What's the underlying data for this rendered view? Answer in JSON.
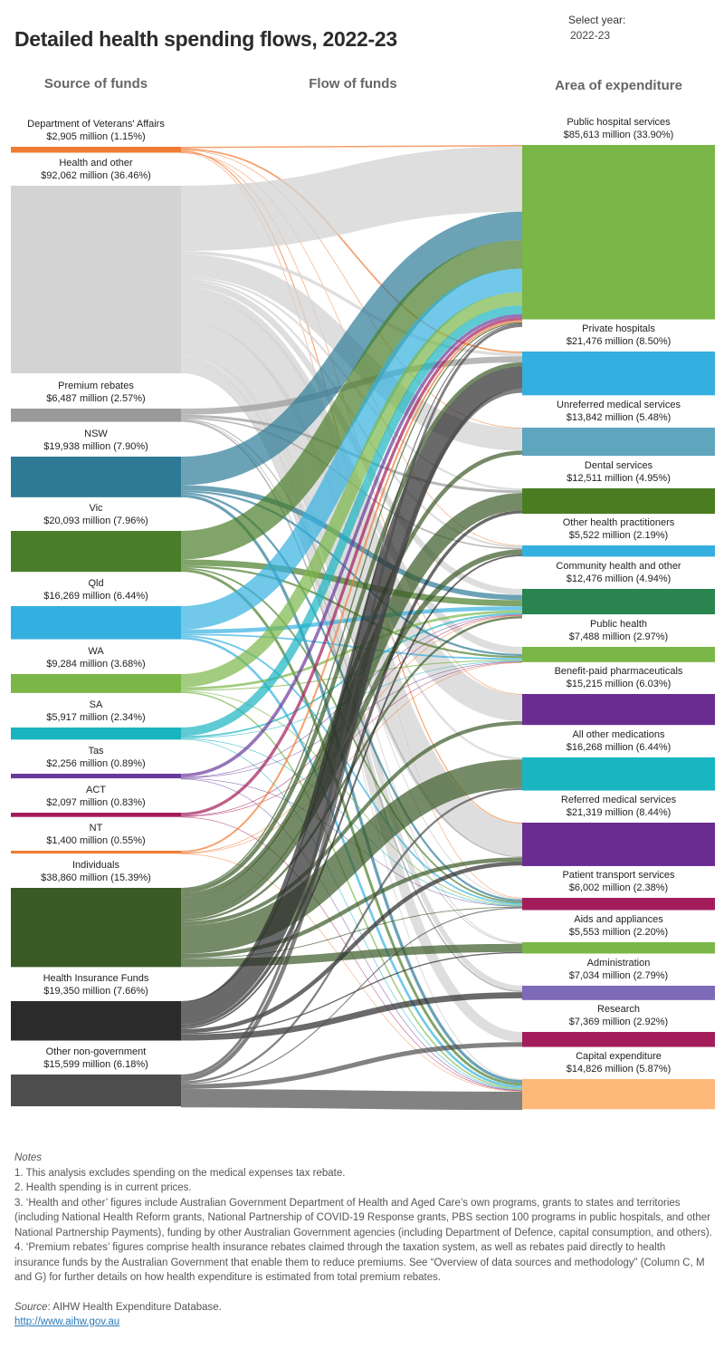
{
  "title": "Detailed health spending flows, 2022-23",
  "year_filter": {
    "label": "Select year:",
    "value": "2022-23"
  },
  "column_headers": {
    "source": "Source of funds",
    "flow": "Flow of funds",
    "area": "Area of expenditure"
  },
  "chart_data": {
    "type": "sankey",
    "sources": [
      {
        "name": "Department of Veterans' Affairs",
        "value": 2905,
        "label": "$2,905 million (1.15%)",
        "color": "#f07c34"
      },
      {
        "name": "Health and other",
        "value": 92062,
        "label": "$92,062 million (36.46%)",
        "color": "#d3d3d3"
      },
      {
        "name": "Premium rebates",
        "value": 6487,
        "label": "$6,487 million (2.57%)",
        "color": "#9a9a9a"
      },
      {
        "name": "NSW",
        "value": 19938,
        "label": "$19,938 million (7.90%)",
        "color": "#2e7a96"
      },
      {
        "name": "Vic",
        "value": 20093,
        "label": "$20,093 million (7.96%)",
        "color": "#4a7d2a"
      },
      {
        "name": "Qld",
        "value": 16269,
        "label": "$16,269 million (6.44%)",
        "color": "#34b0e0"
      },
      {
        "name": "WA",
        "value": 9284,
        "label": "$9,284 million (3.68%)",
        "color": "#7ab648"
      },
      {
        "name": "SA",
        "value": 5917,
        "label": "$5,917 million (2.34%)",
        "color": "#1ab3c0"
      },
      {
        "name": "Tas",
        "value": 2256,
        "label": "$2,256 million (0.89%)",
        "color": "#6a3a9a"
      },
      {
        "name": "ACT",
        "value": 2097,
        "label": "$2,097 million (0.83%)",
        "color": "#a31d5a"
      },
      {
        "name": "NT",
        "value": 1400,
        "label": "$1,400 million (0.55%)",
        "color": "#f07c34"
      },
      {
        "name": "Individuals",
        "value": 38860,
        "label": "$38,860 million (15.39%)",
        "color": "#3a5a26"
      },
      {
        "name": "Health Insurance Funds",
        "value": 19350,
        "label": "$19,350 million (7.66%)",
        "color": "#2b2b2b"
      },
      {
        "name": "Other non-government",
        "value": 15599,
        "label": "$15,599 million (6.18%)",
        "color": "#4d4d4d"
      }
    ],
    "targets": [
      {
        "name": "Public hospital services",
        "value": 85613,
        "label": "$85,613 million (33.90%)",
        "color": "#7ab648"
      },
      {
        "name": "Private hospitals",
        "value": 21476,
        "label": "$21,476 million (8.50%)",
        "color": "#34b0e0"
      },
      {
        "name": "Unreferred medical services",
        "value": 13842,
        "label": "$13,842 million (5.48%)",
        "color": "#5ea5bd"
      },
      {
        "name": "Dental services",
        "value": 12511,
        "label": "$12,511 million (4.95%)",
        "color": "#4a7d22"
      },
      {
        "name": "Other health practitioners",
        "value": 5522,
        "label": "$5,522 million (2.19%)",
        "color": "#34b0e0"
      },
      {
        "name": "Community health and other",
        "value": 12476,
        "label": "$12,476 million (4.94%)",
        "color": "#2a8450"
      },
      {
        "name": "Public health",
        "value": 7488,
        "label": "$7,488 million (2.97%)",
        "color": "#7ab648"
      },
      {
        "name": "Benefit-paid pharmaceuticals",
        "value": 15215,
        "label": "$15,215 million (6.03%)",
        "color": "#6a2c91"
      },
      {
        "name": "All other medications",
        "value": 16268,
        "label": "$16,268 million (6.44%)",
        "color": "#19b5c1"
      },
      {
        "name": "Referred medical services",
        "value": 21319,
        "label": "$21,319 million (8.44%)",
        "color": "#6a2c91"
      },
      {
        "name": "Patient transport services",
        "value": 6002,
        "label": "$6,002 million (2.38%)",
        "color": "#a31d5a"
      },
      {
        "name": "Aids and appliances",
        "value": 5553,
        "label": "$5,553 million (2.20%)",
        "color": "#7ab648"
      },
      {
        "name": "Administration",
        "value": 7034,
        "label": "$7,034 million (2.79%)",
        "color": "#7d6ab8"
      },
      {
        "name": "Research",
        "value": 7369,
        "label": "$7,369 million (2.92%)",
        "color": "#a31d5a"
      },
      {
        "name": "Capital expenditure",
        "value": 14826,
        "label": "$14,826 million (5.87%)",
        "color": "#fdb97a"
      }
    ],
    "flows": [
      [
        0,
        0,
        700
      ],
      [
        0,
        1,
        800
      ],
      [
        0,
        2,
        300
      ],
      [
        0,
        9,
        500
      ],
      [
        0,
        7,
        300
      ],
      [
        0,
        10,
        200
      ],
      [
        0,
        4,
        105
      ],
      [
        1,
        0,
        32062
      ],
      [
        1,
        1,
        1500
      ],
      [
        1,
        2,
        11000
      ],
      [
        1,
        3,
        1000
      ],
      [
        1,
        4,
        1000
      ],
      [
        1,
        5,
        3000
      ],
      [
        1,
        6,
        3500
      ],
      [
        1,
        7,
        13000
      ],
      [
        1,
        8,
        1000
      ],
      [
        1,
        9,
        16000
      ],
      [
        1,
        10,
        500
      ],
      [
        1,
        11,
        500
      ],
      [
        1,
        12,
        2500
      ],
      [
        1,
        13,
        5000
      ],
      [
        1,
        14,
        500
      ],
      [
        2,
        1,
        3000
      ],
      [
        2,
        3,
        1300
      ],
      [
        2,
        4,
        700
      ],
      [
        2,
        9,
        500
      ],
      [
        2,
        11,
        300
      ],
      [
        2,
        12,
        687
      ],
      [
        3,
        0,
        14000
      ],
      [
        3,
        5,
        2500
      ],
      [
        3,
        6,
        1000
      ],
      [
        3,
        10,
        1000
      ],
      [
        3,
        14,
        1438
      ],
      [
        4,
        0,
        14000
      ],
      [
        4,
        5,
        3000
      ],
      [
        4,
        6,
        1000
      ],
      [
        4,
        10,
        800
      ],
      [
        4,
        14,
        1293
      ],
      [
        5,
        0,
        11500
      ],
      [
        5,
        5,
        2000
      ],
      [
        5,
        6,
        800
      ],
      [
        5,
        10,
        800
      ],
      [
        5,
        14,
        1169
      ],
      [
        6,
        0,
        6500
      ],
      [
        6,
        5,
        1200
      ],
      [
        6,
        6,
        500
      ],
      [
        6,
        10,
        400
      ],
      [
        6,
        14,
        684
      ],
      [
        7,
        0,
        4200
      ],
      [
        7,
        5,
        800
      ],
      [
        7,
        6,
        300
      ],
      [
        7,
        10,
        300
      ],
      [
        7,
        14,
        317
      ],
      [
        8,
        0,
        1600
      ],
      [
        8,
        5,
        300
      ],
      [
        8,
        6,
        150
      ],
      [
        8,
        10,
        100
      ],
      [
        8,
        14,
        106
      ],
      [
        9,
        0,
        1500
      ],
      [
        9,
        5,
        300
      ],
      [
        9,
        6,
        150
      ],
      [
        9,
        14,
        147
      ],
      [
        10,
        0,
        900
      ],
      [
        10,
        5,
        300
      ],
      [
        10,
        6,
        100
      ],
      [
        10,
        14,
        100
      ],
      [
        11,
        0,
        600
      ],
      [
        11,
        1,
        2000
      ],
      [
        11,
        2,
        2000
      ],
      [
        11,
        3,
        8500
      ],
      [
        11,
        4,
        2500
      ],
      [
        11,
        5,
        1060
      ],
      [
        11,
        7,
        1800
      ],
      [
        11,
        8,
        14000
      ],
      [
        11,
        9,
        2000
      ],
      [
        11,
        10,
        400
      ],
      [
        11,
        11,
        4000
      ],
      [
        12,
        0,
        450
      ],
      [
        12,
        1,
        11000
      ],
      [
        12,
        3,
        1500
      ],
      [
        12,
        4,
        800
      ],
      [
        12,
        9,
        2000
      ],
      [
        12,
        11,
        600
      ],
      [
        12,
        12,
        3000
      ],
      [
        13,
        0,
        1300
      ],
      [
        13,
        1,
        2000
      ],
      [
        13,
        8,
        1000
      ],
      [
        13,
        10,
        500
      ],
      [
        13,
        13,
        2300
      ],
      [
        13,
        14,
        9000
      ]
    ]
  },
  "notes": {
    "heading": "Notes",
    "items": [
      "1.   This analysis excludes spending on the medical expenses tax rebate.",
      "2.    Health spending is in current prices.",
      "3.    ‘Health and other’ figures include Australian Government Department of Health and Aged Care’s own programs, grants to states and territories (including National Health Reform grants, National Partnership of COVID-19 Response grants, PBS section 100 programs in public hospitals, and other National Partnership Payments), funding by other Australian Government agencies (including Department of Defence, capital consumption, and others).",
      "4.  ‘Premium rebates’ figures comprise health insurance rebates claimed through the taxation system, as well as rebates paid directly to health insurance funds by the Australian Government that enable them to reduce premiums. See “Overview of data sources and methodology” (Column C, M and G) for further details on how health expenditure is estimated from total premium rebates."
    ],
    "source_label": "Source",
    "source_text": ": AIHW Health Expenditure Database.",
    "link": "http://www.aihw.gov.au"
  }
}
